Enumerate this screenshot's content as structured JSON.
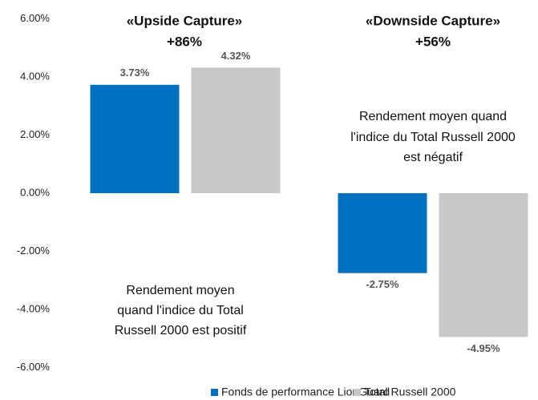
{
  "chart_data": {
    "type": "bar",
    "categories": [
      null,
      null
    ],
    "series": [
      {
        "name": "Fonds de performance LionGuard",
        "color": "#0070c0",
        "values": [
          3.73,
          -2.75
        ],
        "value_labels": [
          "3.73%",
          "-2.75%"
        ]
      },
      {
        "name": "Total Russell 2000",
        "color": "#c8c8c8",
        "values": [
          4.32,
          -4.95
        ],
        "value_labels": [
          "4.32%",
          "-4.95%"
        ]
      }
    ],
    "ylim": [
      -6,
      6
    ],
    "yticks": [
      {
        "value": 6,
        "label": "6.00%"
      },
      {
        "value": 4,
        "label": "4.00%"
      },
      {
        "value": 2,
        "label": "2.00%"
      },
      {
        "value": 0,
        "label": "0.00%"
      },
      {
        "value": -2,
        "label": "-2.00%"
      },
      {
        "value": -4,
        "label": "-4.00%"
      },
      {
        "value": -6,
        "label": "-6.00%"
      }
    ],
    "grid": false,
    "legend": "bottom",
    "annotations": [
      "«Upside Capture»",
      "+86%",
      "«Downside Capture»",
      "+56%",
      "Rendement moyen quand",
      "l'indice du Total  Russell 2000",
      "est négatif",
      "Rendement  moyen",
      "quand l'indice du Total",
      "Russell 2000 est positif"
    ]
  }
}
